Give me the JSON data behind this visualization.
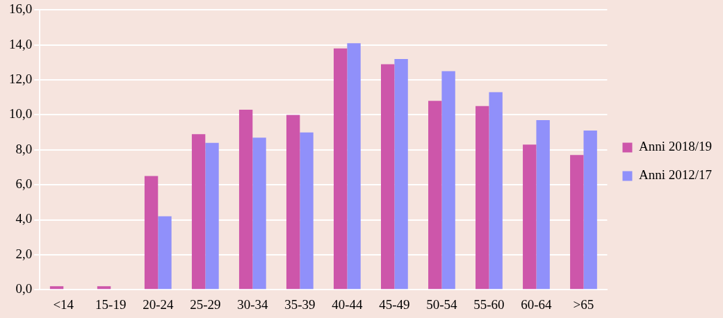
{
  "chart_data": {
    "type": "bar",
    "categories": [
      "<14",
      "15-19",
      "20-24",
      "25-29",
      "30-34",
      "35-39",
      "40-44",
      "45-49",
      "50-54",
      "55-60",
      "60-64",
      ">65"
    ],
    "series": [
      {
        "name": "Anni 2018/19",
        "color": "#cd56aa",
        "values": [
          0.2,
          0.2,
          6.5,
          8.9,
          10.3,
          10.0,
          13.8,
          12.9,
          10.8,
          10.5,
          8.3,
          7.7
        ]
      },
      {
        "name": "Anni 2012/17",
        "color": "#9090fa",
        "values": [
          null,
          null,
          4.2,
          8.4,
          8.7,
          9.0,
          14.1,
          13.2,
          12.5,
          11.3,
          9.7,
          9.1
        ]
      }
    ],
    "ylim": [
      0,
      16
    ],
    "yticks": [
      {
        "value": 0,
        "label": "0,0"
      },
      {
        "value": 2,
        "label": "2,0"
      },
      {
        "value": 4,
        "label": "4,0"
      },
      {
        "value": 6,
        "label": "6,0"
      },
      {
        "value": 8,
        "label": "8,0"
      },
      {
        "value": 10,
        "label": "10,0"
      },
      {
        "value": 12,
        "label": "12,0"
      },
      {
        "value": 14,
        "label": "14,0"
      },
      {
        "value": 16,
        "label": "16,0"
      }
    ],
    "grid": "y",
    "legend": "right"
  }
}
